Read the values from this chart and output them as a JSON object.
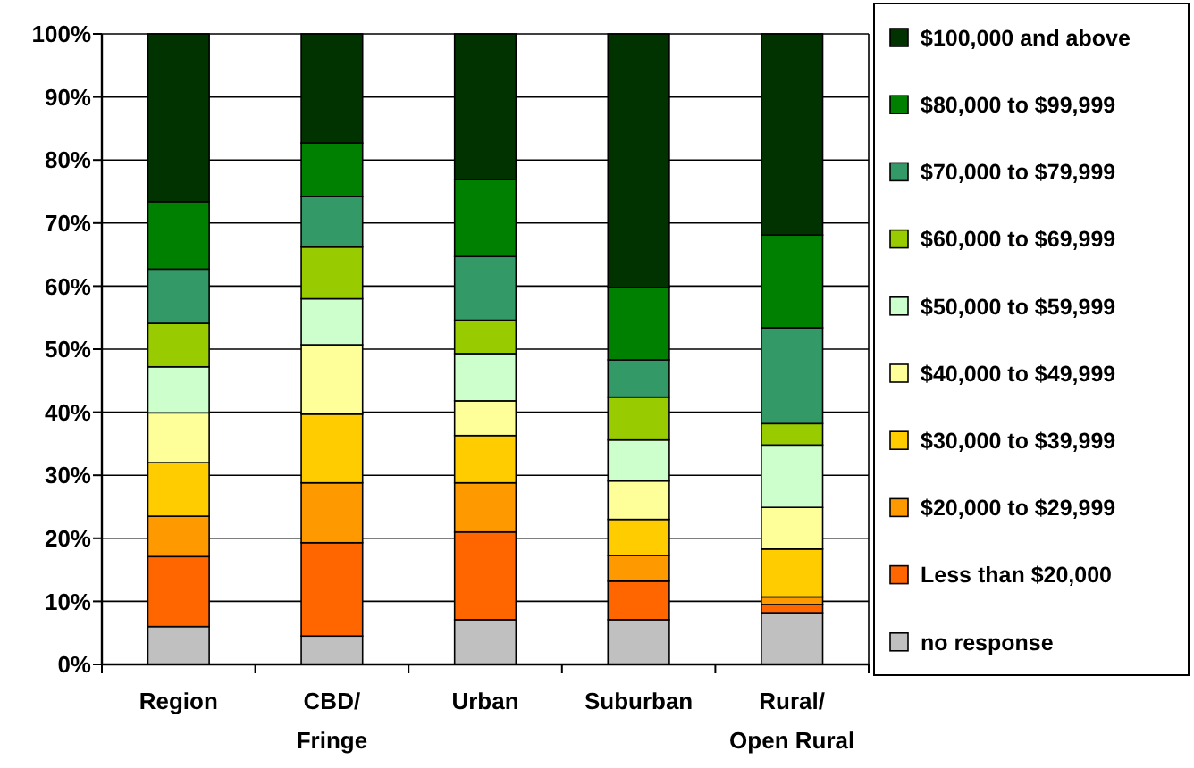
{
  "chart_data": {
    "type": "bar",
    "stacked": true,
    "categories": [
      "Region",
      "CBD/\nFringe",
      "Urban",
      "Suburban",
      "Rural/\nOpen Rural"
    ],
    "series": [
      {
        "name": "no response",
        "color": "#c0c0c0",
        "values": [
          6.0,
          4.5,
          7.1,
          7.1,
          8.2
        ]
      },
      {
        "name": "Less than $20,000",
        "color": "#ff6600",
        "values": [
          11.1,
          14.8,
          13.9,
          6.1,
          1.3
        ]
      },
      {
        "name": "$20,000 to $29,999",
        "color": "#ff9900",
        "values": [
          6.4,
          9.5,
          7.8,
          4.1,
          1.2
        ]
      },
      {
        "name": "$30,000 to $39,999",
        "color": "#ffcc00",
        "values": [
          8.5,
          10.9,
          7.5,
          5.7,
          7.6
        ]
      },
      {
        "name": "$40,000 to $49,999",
        "color": "#ffff99",
        "values": [
          7.9,
          11.0,
          5.5,
          6.1,
          6.6
        ]
      },
      {
        "name": "$50,000 to $59,999",
        "color": "#ccffcc",
        "values": [
          7.3,
          7.3,
          7.5,
          6.5,
          9.9
        ]
      },
      {
        "name": "$60,000 to $69,999",
        "color": "#99cc00",
        "values": [
          6.9,
          8.2,
          5.3,
          6.8,
          3.4
        ]
      },
      {
        "name": "$70,000 to $79,999",
        "color": "#339966",
        "values": [
          8.6,
          8.0,
          10.1,
          5.9,
          15.2
        ]
      },
      {
        "name": "$80,000 to $99,999",
        "color": "#008000",
        "values": [
          10.7,
          8.5,
          12.2,
          11.5,
          14.7
        ]
      },
      {
        "name": "$100,000 and above",
        "color": "#003300",
        "values": [
          26.6,
          17.3,
          23.1,
          40.2,
          31.9
        ]
      }
    ],
    "ylim": [
      0,
      100
    ],
    "yticks": [
      {
        "value": 0,
        "label": "0%"
      },
      {
        "value": 10,
        "label": "10%"
      },
      {
        "value": 20,
        "label": "20%"
      },
      {
        "value": 30,
        "label": "30%"
      },
      {
        "value": 40,
        "label": "40%"
      },
      {
        "value": 50,
        "label": "50%"
      },
      {
        "value": 60,
        "label": "60%"
      },
      {
        "value": 70,
        "label": "70%"
      },
      {
        "value": 80,
        "label": "80%"
      },
      {
        "value": 90,
        "label": "90%"
      },
      {
        "value": 100,
        "label": "100%"
      }
    ],
    "grid": "y",
    "legend": "right"
  }
}
